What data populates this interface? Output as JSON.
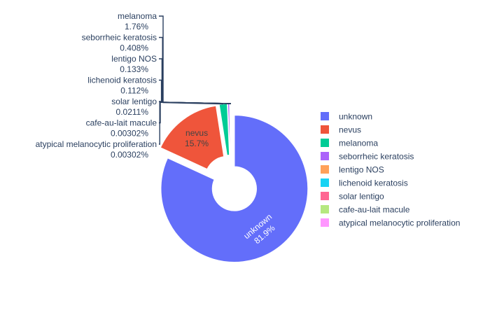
{
  "chart_data": {
    "type": "pie",
    "hole": 0.3,
    "pulled": true,
    "legend_position": "right",
    "labels": [
      "unknown",
      "nevus",
      "melanoma",
      "seborrheic keratosis",
      "lentigo NOS",
      "lichenoid keratosis",
      "solar lentigo",
      "cafe-au-lait macule",
      "atypical melanocytic proliferation"
    ],
    "percent_text": [
      "81.9%",
      "15.7%",
      "1.76%",
      "0.408%",
      "0.133%",
      "0.112%",
      "0.0211%",
      "0.00302%",
      "0.00302%"
    ],
    "values": [
      81.9,
      15.7,
      1.76,
      0.408,
      0.133,
      0.112,
      0.0211,
      0.00302,
      0.00302
    ],
    "colors": [
      "#636efa",
      "#EF553B",
      "#00cc96",
      "#ab63fa",
      "#FFA15A",
      "#19d3f3",
      "#FF6692",
      "#B6E880",
      "#FF97FF"
    ],
    "inside_labels": [
      "unknown",
      "nevus"
    ]
  }
}
